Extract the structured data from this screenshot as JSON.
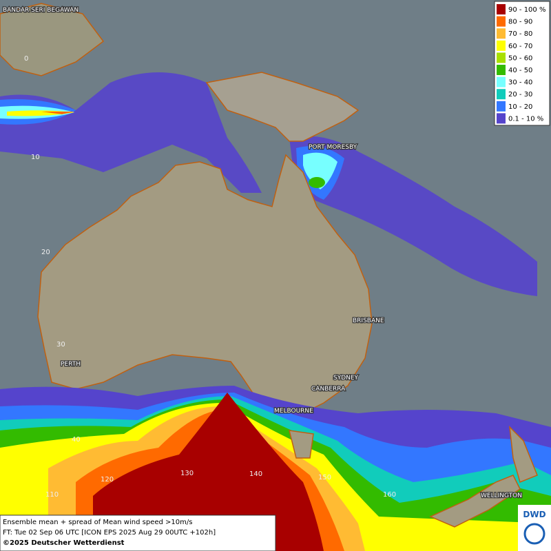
{
  "map": {
    "legend": [
      {
        "label": "90 - 100 %",
        "color": "#a80000"
      },
      {
        "label": "80 - 90",
        "color": "#ff6a00"
      },
      {
        "label": "70 - 80",
        "color": "#ffbb33"
      },
      {
        "label": "60 - 70",
        "color": "#ffff00"
      },
      {
        "label": "50 - 60",
        "color": "#a8e000"
      },
      {
        "label": "40 - 50",
        "color": "#33bb00"
      },
      {
        "label": "30 - 40",
        "color": "#77ffff"
      },
      {
        "label": "20 - 30",
        "color": "#11ccbb"
      },
      {
        "label": "10 - 20",
        "color": "#3377ff"
      },
      {
        "label": "0.1 - 10 %",
        "color": "#5544cc"
      }
    ],
    "cities": [
      "BANDAR SERI BEGAWAN",
      "PORT MORESBY",
      "BRISBANE",
      "PERTH",
      "SYDNEY",
      "CANBERRA",
      "MELBOURNE",
      "WELLINGTON"
    ],
    "latitude_labels": [
      "0",
      "10",
      "20",
      "30",
      "40"
    ],
    "longitude_labels": [
      "110",
      "120",
      "130",
      "140",
      "150",
      "160"
    ],
    "footer": [
      "Ensemble mean + spread of Mean wind speed >10m/s",
      "FT: Tue 02 Sep 06 UTC [ICON EPS 2025 Aug 29 00UTC +102h]",
      "©2025 Deutscher Wetterdienst"
    ],
    "logo": "DWD"
  }
}
